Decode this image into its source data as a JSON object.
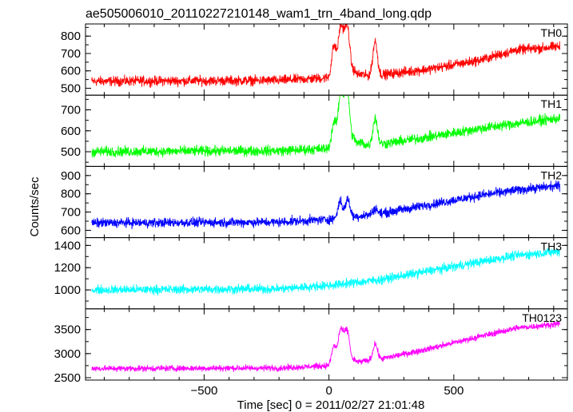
{
  "chart_data": {
    "type": "line",
    "title": "ae505006010_20110227210148_wam1_trn_4band_long.qdp",
    "xlabel": "Time [sec] 0 = 2011/02/27 21:01:48",
    "ylabel": "Counts/sec",
    "xlim": [
      -975,
      955
    ],
    "x_ticks": [
      -500,
      0,
      500
    ],
    "x_tick_labels": [
      "−500",
      "0",
      "500"
    ],
    "grid": false,
    "panels": [
      {
        "name": "TH0",
        "color": "#ff0000",
        "ylim": [
          460,
          870
        ],
        "y_ticks": [
          500,
          600,
          700,
          800
        ],
        "y_tick_labels": [
          "500",
          "600",
          "700",
          "800"
        ],
        "x_start": -950,
        "x_end": 925,
        "baseline": [
          [
            -950,
            540
          ],
          [
            -200,
            545
          ],
          [
            0,
            560
          ],
          [
            200,
            575
          ],
          [
            400,
            610
          ],
          [
            600,
            660
          ],
          [
            750,
            720
          ],
          [
            925,
            740
          ]
        ],
        "noise_amplitude": 42,
        "features": [
          {
            "x": 20,
            "y": 740
          },
          {
            "x": 45,
            "y": 810
          },
          {
            "x": 60,
            "y": 720
          },
          {
            "x": 75,
            "y": 820
          },
          {
            "x": 100,
            "y": 600
          },
          {
            "x": 130,
            "y": 580
          },
          {
            "x": 185,
            "y": 770
          }
        ]
      },
      {
        "name": "TH1",
        "color": "#00ff00",
        "ylim": [
          430,
          770
        ],
        "y_ticks": [
          500,
          600,
          700
        ],
        "y_tick_labels": [
          "500",
          "600",
          "700"
        ],
        "x_start": -950,
        "x_end": 925,
        "baseline": [
          [
            -950,
            500
          ],
          [
            -200,
            505
          ],
          [
            0,
            515
          ],
          [
            200,
            535
          ],
          [
            400,
            570
          ],
          [
            600,
            610
          ],
          [
            750,
            635
          ],
          [
            925,
            660
          ]
        ],
        "noise_amplitude": 36,
        "features": [
          {
            "x": 20,
            "y": 640
          },
          {
            "x": 45,
            "y": 740
          },
          {
            "x": 60,
            "y": 660
          },
          {
            "x": 75,
            "y": 755
          },
          {
            "x": 100,
            "y": 560
          },
          {
            "x": 130,
            "y": 545
          },
          {
            "x": 185,
            "y": 660
          }
        ]
      },
      {
        "name": "TH2",
        "color": "#0000ff",
        "ylim": [
          560,
          950
        ],
        "y_ticks": [
          600,
          700,
          800,
          900
        ],
        "y_tick_labels": [
          "600",
          "700",
          "800",
          "900"
        ],
        "x_start": -950,
        "x_end": 925,
        "baseline": [
          [
            -950,
            640
          ],
          [
            -200,
            645
          ],
          [
            0,
            660
          ],
          [
            200,
            690
          ],
          [
            400,
            740
          ],
          [
            600,
            790
          ],
          [
            750,
            820
          ],
          [
            925,
            845
          ]
        ],
        "noise_amplitude": 38,
        "features": [
          {
            "x": 45,
            "y": 760
          },
          {
            "x": 75,
            "y": 770
          },
          {
            "x": 185,
            "y": 720
          }
        ]
      },
      {
        "name": "TH3",
        "color": "#00ffff",
        "ylim": [
          830,
          1470
        ],
        "y_ticks": [
          1000,
          1200,
          1400
        ],
        "y_tick_labels": [
          "1000",
          "1200",
          "1400"
        ],
        "x_start": -950,
        "x_end": 925,
        "baseline": [
          [
            -950,
            1000
          ],
          [
            -200,
            1010
          ],
          [
            0,
            1040
          ],
          [
            200,
            1090
          ],
          [
            400,
            1170
          ],
          [
            600,
            1250
          ],
          [
            750,
            1310
          ],
          [
            925,
            1345
          ]
        ],
        "noise_amplitude": 60,
        "features": []
      },
      {
        "name": "TH0123",
        "color": "#ff00ff",
        "ylim": [
          2450,
          3930
        ],
        "y_ticks": [
          2500,
          3000,
          3500
        ],
        "y_tick_labels": [
          "2500",
          "3000",
          "3500"
        ],
        "x_start": -950,
        "x_end": 925,
        "baseline": [
          [
            -950,
            2690
          ],
          [
            -200,
            2700
          ],
          [
            0,
            2750
          ],
          [
            200,
            2880
          ],
          [
            400,
            3100
          ],
          [
            600,
            3350
          ],
          [
            750,
            3530
          ],
          [
            925,
            3620
          ]
        ],
        "noise_amplitude": 95,
        "features": [
          {
            "x": 20,
            "y": 3150
          },
          {
            "x": 45,
            "y": 3400
          },
          {
            "x": 60,
            "y": 3150
          },
          {
            "x": 75,
            "y": 3380
          },
          {
            "x": 100,
            "y": 2850
          },
          {
            "x": 185,
            "y": 3200
          }
        ]
      }
    ]
  }
}
